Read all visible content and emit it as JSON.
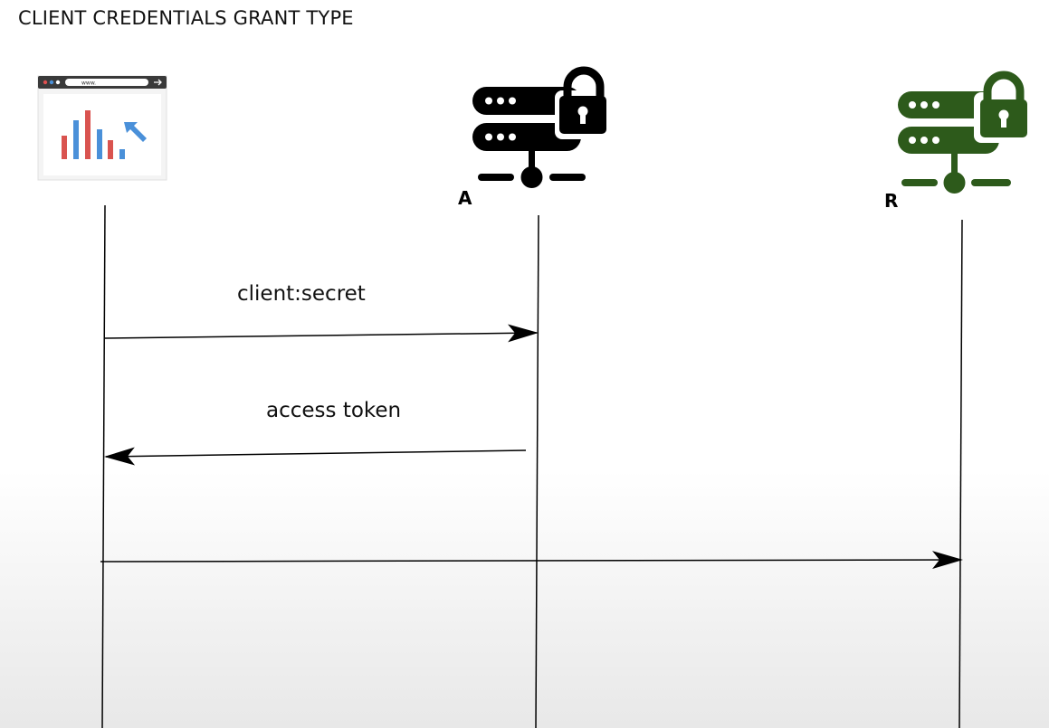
{
  "title": "CLIENT CREDENTIALS GRANT TYPE",
  "actors": {
    "client": {
      "icon": "browser-chart-icon",
      "url_text": "www.",
      "label": ""
    },
    "auth_server": {
      "icon": "server-lock-icon",
      "label": "A",
      "color": "#000000"
    },
    "resource_server": {
      "icon": "server-lock-icon",
      "label": "R",
      "color": "#2d5a1b"
    }
  },
  "messages": [
    {
      "label": "client:secret",
      "from": "client",
      "to": "auth_server"
    },
    {
      "label": "access token",
      "from": "auth_server",
      "to": "client"
    },
    {
      "label": "",
      "from": "client",
      "to": "resource_server"
    }
  ],
  "colors": {
    "bar_red": "#d9534f",
    "bar_blue": "#4a90d9",
    "cursor_blue": "#4a90d9",
    "browser_frame": "#3a3a3a"
  }
}
